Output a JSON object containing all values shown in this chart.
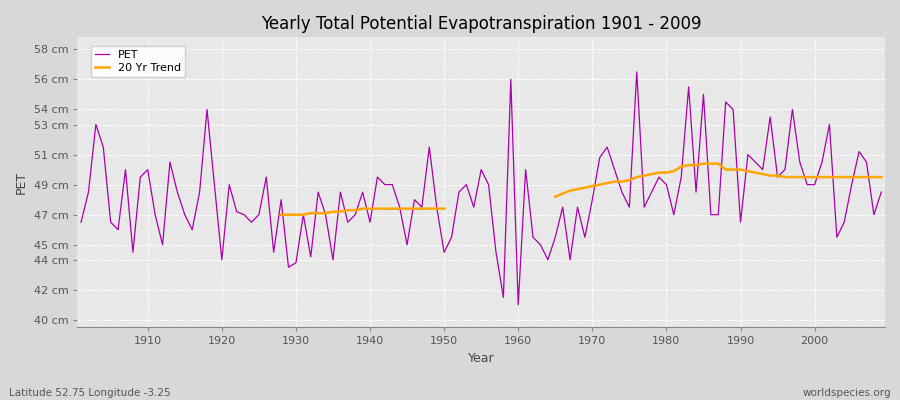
{
  "title": "Yearly Total Potential Evapotranspiration 1901 - 2009",
  "xlabel": "Year",
  "ylabel": "PET",
  "subtitle": "Latitude 52.75 Longitude -3.25",
  "watermark": "worldspecies.org",
  "pet_color": "#AA00AA",
  "trend_color": "#FFA500",
  "fig_bg": "#D8D8D8",
  "ax_bg": "#E8E8E8",
  "ylim": [
    39.5,
    58.8
  ],
  "xlim": [
    1900.5,
    2009.5
  ],
  "ytick_labels": [
    "40 cm",
    "42 cm",
    "44 cm",
    "45 cm",
    "47 cm",
    "49 cm",
    "51 cm",
    "53 cm",
    "54 cm",
    "56 cm",
    "58 cm"
  ],
  "ytick_vals": [
    40,
    42,
    44,
    45,
    47,
    49,
    51,
    53,
    54,
    56,
    58
  ],
  "years": [
    1901,
    1902,
    1903,
    1904,
    1905,
    1906,
    1907,
    1908,
    1909,
    1910,
    1911,
    1912,
    1913,
    1914,
    1915,
    1916,
    1917,
    1918,
    1919,
    1920,
    1921,
    1922,
    1923,
    1924,
    1925,
    1926,
    1927,
    1928,
    1929,
    1930,
    1931,
    1932,
    1933,
    1934,
    1935,
    1936,
    1937,
    1938,
    1939,
    1940,
    1941,
    1942,
    1943,
    1944,
    1945,
    1946,
    1947,
    1948,
    1949,
    1950,
    1951,
    1952,
    1953,
    1954,
    1955,
    1956,
    1957,
    1958,
    1959,
    1960,
    1961,
    1962,
    1963,
    1964,
    1965,
    1966,
    1967,
    1968,
    1969,
    1970,
    1971,
    1972,
    1973,
    1974,
    1975,
    1976,
    1977,
    1978,
    1979,
    1980,
    1981,
    1982,
    1983,
    1984,
    1985,
    1986,
    1987,
    1988,
    1989,
    1990,
    1991,
    1992,
    1993,
    1994,
    1995,
    1996,
    1997,
    1998,
    1999,
    2000,
    2001,
    2002,
    2003,
    2004,
    2005,
    2006,
    2007,
    2008,
    2009
  ],
  "pet_values": [
    46.5,
    48.5,
    53.0,
    51.5,
    46.5,
    46.0,
    50.0,
    44.5,
    49.5,
    50.0,
    47.0,
    45.0,
    50.5,
    48.5,
    47.0,
    46.0,
    48.5,
    54.0,
    49.0,
    44.0,
    49.0,
    47.2,
    47.0,
    46.5,
    47.0,
    49.5,
    44.5,
    48.0,
    43.5,
    43.8,
    47.0,
    44.2,
    48.5,
    47.0,
    44.0,
    48.5,
    46.5,
    47.0,
    48.5,
    46.5,
    49.5,
    49.0,
    49.0,
    47.5,
    45.0,
    48.0,
    47.5,
    51.5,
    47.5,
    44.5,
    45.5,
    48.5,
    49.0,
    47.5,
    50.0,
    49.0,
    44.5,
    41.5,
    56.0,
    41.0,
    50.0,
    45.5,
    45.0,
    44.0,
    45.5,
    47.5,
    44.0,
    47.5,
    45.5,
    48.0,
    50.8,
    51.5,
    50.0,
    48.5,
    47.5,
    56.5,
    47.5,
    48.5,
    49.5,
    49.0,
    47.0,
    49.5,
    55.5,
    48.5,
    55.0,
    47.0,
    47.0,
    54.5,
    54.0,
    46.5,
    51.0,
    50.5,
    50.0,
    53.5,
    49.5,
    50.0,
    54.0,
    50.5,
    49.0,
    49.0,
    50.5,
    53.0,
    45.5,
    46.5,
    49.0,
    51.2,
    50.5,
    47.0,
    48.5
  ],
  "trend_seg1_years": [
    1928,
    1929,
    1930,
    1931,
    1932,
    1933,
    1934,
    1935,
    1936,
    1937,
    1938,
    1939,
    1940,
    1941,
    1942,
    1943,
    1944,
    1945,
    1946,
    1947,
    1948,
    1949,
    1950
  ],
  "trend_seg1_values": [
    47.0,
    47.0,
    47.0,
    47.0,
    47.1,
    47.1,
    47.1,
    47.2,
    47.2,
    47.3,
    47.3,
    47.4,
    47.4,
    47.4,
    47.4,
    47.4,
    47.4,
    47.4,
    47.4,
    47.4,
    47.4,
    47.4,
    47.4
  ],
  "trend_seg2_years": [
    1965,
    1966,
    1967,
    1968,
    1969,
    1970,
    1971,
    1972,
    1973,
    1974,
    1975,
    1976,
    1977,
    1978,
    1979,
    1980,
    1981,
    1982,
    1983,
    1984,
    1985,
    1986,
    1987,
    1988,
    1989,
    1990,
    1991,
    1992,
    1993,
    1994,
    1995,
    1996,
    1997,
    1998,
    1999,
    2000,
    2001,
    2002,
    2003,
    2004,
    2005,
    2006,
    2007,
    2008,
    2009
  ],
  "trend_seg2_values": [
    48.2,
    48.4,
    48.6,
    48.7,
    48.8,
    48.9,
    49.0,
    49.1,
    49.2,
    49.2,
    49.3,
    49.5,
    49.6,
    49.7,
    49.8,
    49.8,
    49.9,
    50.2,
    50.3,
    50.3,
    50.4,
    50.4,
    50.4,
    50.0,
    50.0,
    50.0,
    49.9,
    49.8,
    49.7,
    49.6,
    49.6,
    49.5,
    49.5,
    49.5,
    49.5,
    49.5,
    49.5,
    49.5,
    49.5,
    49.5,
    49.5,
    49.5,
    49.5,
    49.5,
    49.5
  ]
}
